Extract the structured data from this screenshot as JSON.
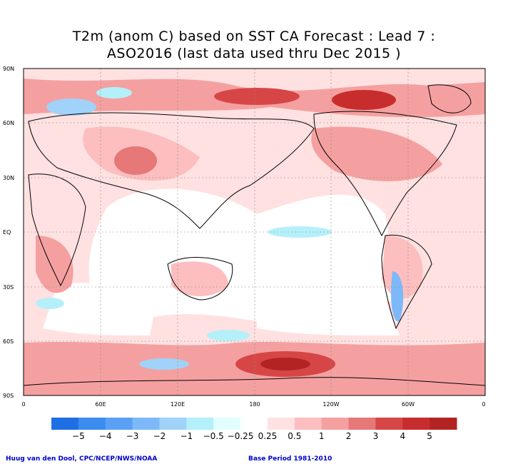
{
  "title": {
    "line1": "T2m (anom C) based on SST CA Forecast : Lead 7 :",
    "line2": "ASO2016 (last data used thru Dec 2015 )"
  },
  "lat_labels": [
    "90N",
    "60N",
    "30N",
    "EQ",
    "30S",
    "60S",
    "90S"
  ],
  "lon_labels": [
    "0",
    "60E",
    "120E",
    "180",
    "120W",
    "60W",
    "0"
  ],
  "colorbar": {
    "labels": [
      "−5",
      "−4",
      "−3",
      "−2",
      "−1",
      "−0.5",
      "−0.25",
      "0.25",
      "0.5",
      "1",
      "2",
      "3",
      "4",
      "5"
    ],
    "colors": [
      "#1e6ee6",
      "#3c8cf0",
      "#5aa0f5",
      "#7db9f8",
      "#a0d2fa",
      "#b4f0fa",
      "#e1ffff",
      "#ffffff",
      "#ffe1e1",
      "#fcbebe",
      "#f5a0a0",
      "#e67878",
      "#d74646",
      "#c82d2d",
      "#b42323"
    ]
  },
  "credit_left": "Huug van den Dool, CPC/NCEP/NWS/NOAA",
  "credit_right": "Base Period 1981-2010"
}
